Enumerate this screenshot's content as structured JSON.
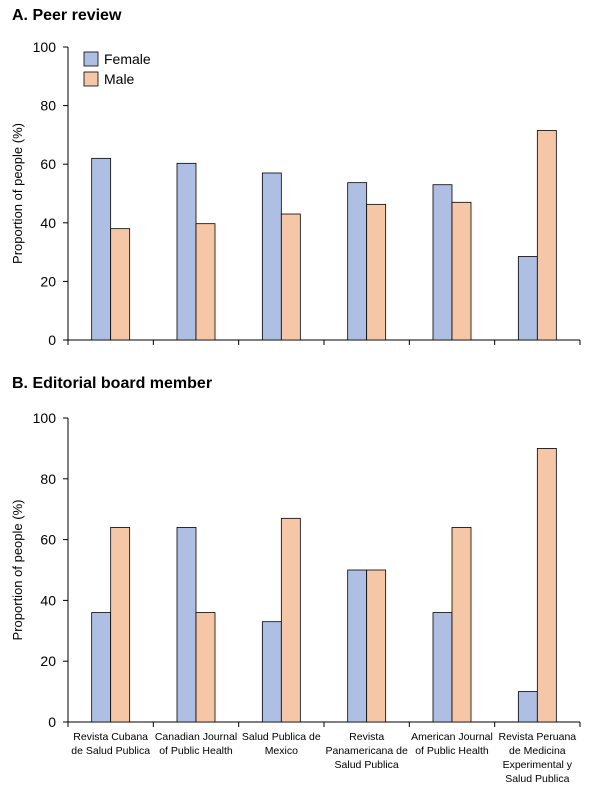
{
  "colors": {
    "female": "#aebfe3",
    "male": "#f6c7a6",
    "stroke": "#000000"
  },
  "chart_data": [
    {
      "type": "bar",
      "title": "A. Peer review",
      "ylabel": "Proportion of people (%)",
      "xlabel": "",
      "ylim": [
        0,
        100
      ],
      "yticks": [
        0,
        20,
        40,
        60,
        80,
        100
      ],
      "legend": "top-left",
      "grid": false,
      "categories": [
        "Revista Cubana de Salud Publica",
        "Canadian Journal of Public Health",
        "Salud Publica de Mexico",
        "Revista Panamericana de Salud Publica",
        "American Journal of Public Health",
        "Revista Peruana de Medicina Experimental y Salud Publica"
      ],
      "series": [
        {
          "name": "Female",
          "values": [
            62,
            60.3,
            57,
            53.7,
            53,
            28.5
          ]
        },
        {
          "name": "Male",
          "values": [
            38,
            39.7,
            43,
            46.3,
            47,
            71.5
          ]
        }
      ]
    },
    {
      "type": "bar",
      "title": "B. Editorial board member",
      "ylabel": "Proportion of people (%)",
      "xlabel": "",
      "ylim": [
        0,
        100
      ],
      "yticks": [
        0,
        20,
        40,
        60,
        80,
        100
      ],
      "grid": false,
      "categories": [
        "Revista Cubana de Salud Publica",
        "Canadian Journal of Public Health",
        "Salud Publica de Mexico",
        "Revista Panamericana de Salud Publica",
        "American Journal of Public Health",
        "Revista Peruana de Medicina Experimental y Salud Publica"
      ],
      "category_lines": [
        [
          "Revista Cubana",
          "de Salud Publica"
        ],
        [
          "Canadian Journal",
          "of Public Health"
        ],
        [
          "Salud Publica de",
          "Mexico"
        ],
        [
          "Revista",
          "Panamericana de",
          "Salud Publica"
        ],
        [
          "American Journal",
          "of Public Health"
        ],
        [
          "Revista Peruana",
          "de Medicina",
          "Experimental y",
          "Salud Publica"
        ]
      ],
      "series": [
        {
          "name": "Female",
          "values": [
            36,
            64,
            33,
            50,
            36,
            10
          ]
        },
        {
          "name": "Male",
          "values": [
            64,
            36,
            67,
            50,
            64,
            90
          ]
        }
      ]
    }
  ]
}
